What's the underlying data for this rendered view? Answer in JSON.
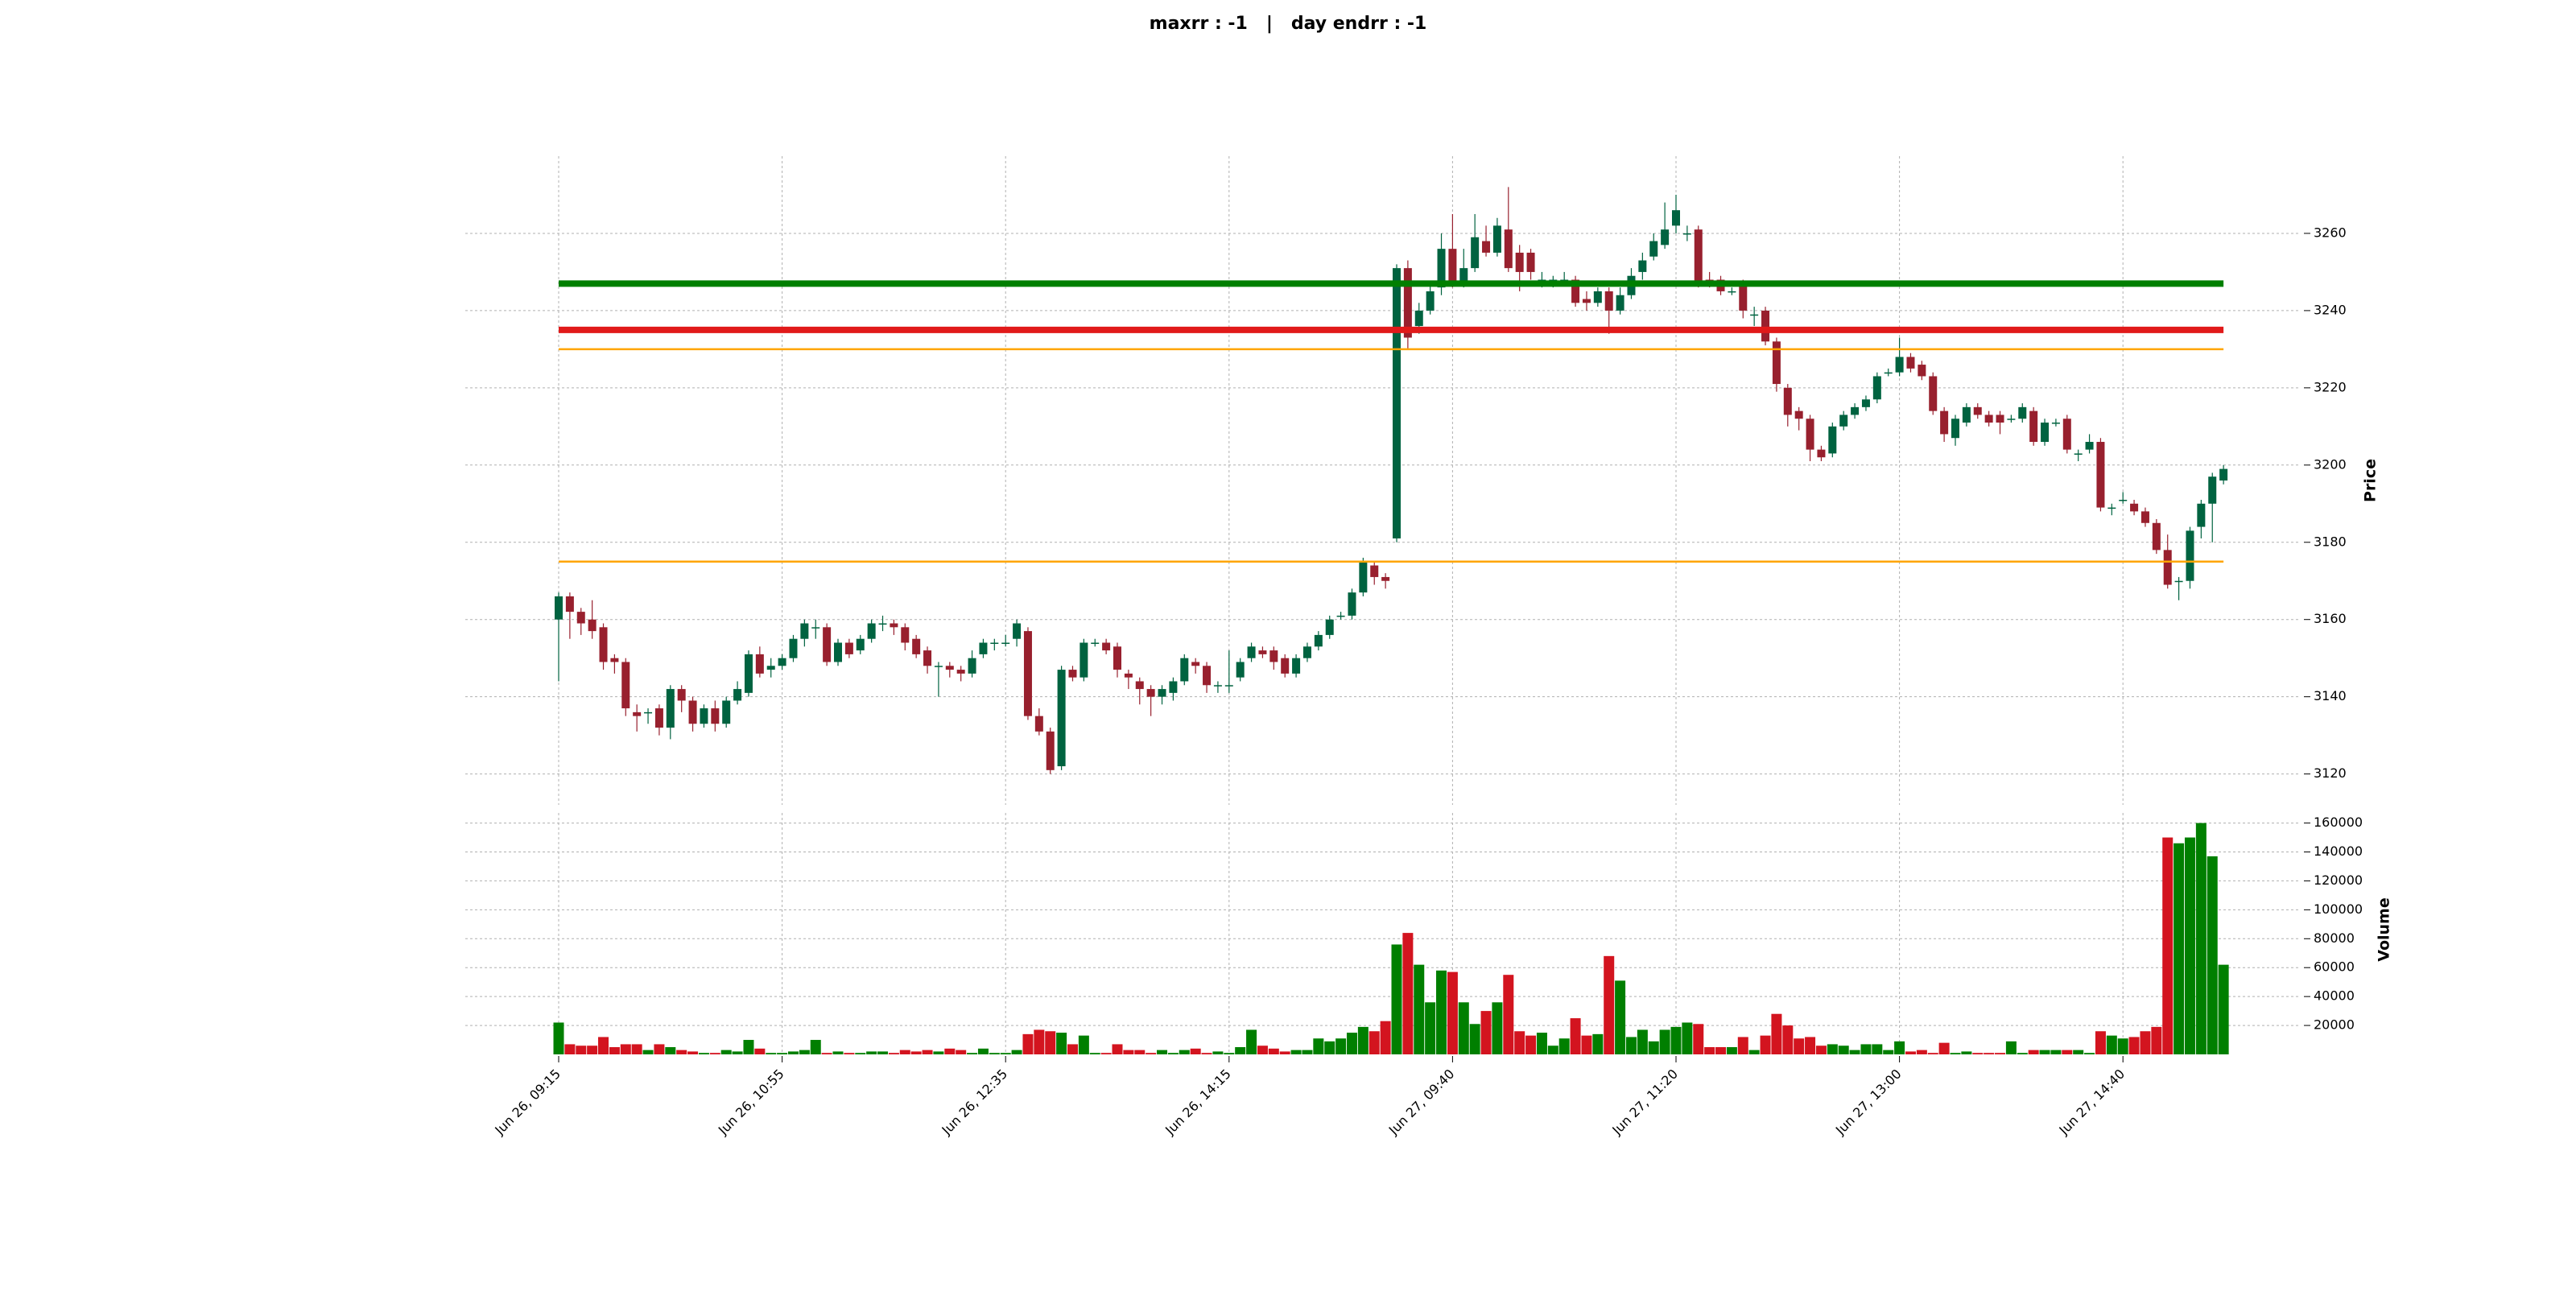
{
  "chart_data": {
    "type": "candlestick",
    "title": "maxrr : -1   |   day endrr : -1",
    "ylabel": "Price",
    "volume_ylabel": "Volume",
    "ylim": [
      3112,
      3280
    ],
    "yticks": [
      3120,
      3140,
      3160,
      3180,
      3200,
      3220,
      3240,
      3260
    ],
    "volume_ylim": [
      0,
      167000
    ],
    "volume_yticks": [
      20000,
      40000,
      60000,
      80000,
      100000,
      120000,
      140000,
      160000
    ],
    "xticks": [
      {
        "value": 0,
        "label": "Jun 26, 09:15"
      },
      {
        "value": 20,
        "label": "Jun 26, 10:55"
      },
      {
        "value": 40,
        "label": "Jun 26, 12:35"
      },
      {
        "value": 60,
        "label": "Jun 26, 14:15"
      },
      {
        "value": 80,
        "label": "Jun 27, 09:40"
      },
      {
        "value": 100,
        "label": "Jun 27, 11:20"
      },
      {
        "value": 120,
        "label": "Jun 27, 13:00"
      },
      {
        "value": 140,
        "label": "Jun 27, 14:40"
      }
    ],
    "grid": true,
    "up_color": "#006340",
    "down_color": "#98202e",
    "volume_up_color": "#007f00",
    "volume_down_color": "#d3141f",
    "open": [
      3160,
      3166,
      3162,
      3160,
      3158,
      3150,
      3149,
      3136,
      3136,
      3137,
      3132,
      3142,
      3139,
      3133,
      3137,
      3133,
      3139,
      3141,
      3151,
      3147,
      3148,
      3150,
      3155,
      3158,
      3158,
      3149,
      3154,
      3152,
      3155,
      3159,
      3159,
      3158,
      3155,
      3152,
      3148,
      3148,
      3147,
      3146,
      3151,
      3154,
      3154,
      3155,
      3157,
      3135,
      3131,
      3122,
      3147,
      3145,
      3154,
      3154,
      3153,
      3146,
      3144,
      3142,
      3140,
      3141,
      3144,
      3149,
      3148,
      3143,
      3143,
      3145,
      3150,
      3152,
      3152,
      3150,
      3146,
      3150,
      3153,
      3156,
      3161,
      3161,
      3167,
      3174,
      3171,
      3181,
      3251,
      3236,
      3240,
      3246,
      3256,
      3247,
      3251,
      3258,
      3255,
      3261,
      3255,
      3255,
      3248,
      3248,
      3248,
      3248,
      3243,
      3242,
      3245,
      3240,
      3244,
      3250,
      3254,
      3257,
      3262,
      3260,
      3261,
      3248,
      3248,
      3245,
      3247,
      3239,
      3240,
      3232,
      3220,
      3214,
      3212,
      3204,
      3203,
      3210,
      3213,
      3215,
      3217,
      3224,
      3224,
      3228,
      3226,
      3223,
      3214,
      3207,
      3211,
      3215,
      3213,
      3213,
      3212,
      3212,
      3214,
      3206,
      3211,
      3212,
      3203,
      3204,
      3206,
      3189,
      3191,
      3190,
      3188,
      3185,
      3178,
      3170,
      3170,
      3184,
      3190,
      3196
    ],
    "high": [
      3167,
      3167,
      3163,
      3165,
      3159,
      3151,
      3150,
      3138,
      3137,
      3138,
      3143,
      3143,
      3140,
      3138,
      3139,
      3140,
      3144,
      3152,
      3153,
      3150,
      3151,
      3156,
      3160,
      3160,
      3159,
      3155,
      3155,
      3156,
      3160,
      3161,
      3160,
      3159,
      3156,
      3153,
      3149,
      3149,
      3148,
      3152,
      3155,
      3155,
      3156,
      3160,
      3158,
      3137,
      3132,
      3148,
      3148,
      3155,
      3155,
      3155,
      3154,
      3147,
      3145,
      3143,
      3143,
      3145,
      3151,
      3150,
      3149,
      3144,
      3152,
      3150,
      3154,
      3153,
      3153,
      3151,
      3151,
      3154,
      3157,
      3161,
      3162,
      3168,
      3176,
      3175,
      3172,
      3252,
      3253,
      3242,
      3247,
      3260,
      3265,
      3256,
      3265,
      3262,
      3264,
      3272,
      3257,
      3256,
      3250,
      3249,
      3250,
      3249,
      3245,
      3246,
      3246,
      3246,
      3251,
      3255,
      3260,
      3268,
      3270,
      3262,
      3262,
      3250,
      3249,
      3246,
      3248,
      3241,
      3241,
      3233,
      3221,
      3215,
      3213,
      3205,
      3211,
      3214,
      3216,
      3218,
      3224,
      3225,
      3233,
      3229,
      3227,
      3224,
      3215,
      3213,
      3216,
      3216,
      3214,
      3214,
      3213,
      3216,
      3215,
      3212,
      3212,
      3213,
      3204,
      3208,
      3207,
      3190,
      3193,
      3191,
      3189,
      3186,
      3182,
      3171,
      3184,
      3191,
      3198,
      3200
    ],
    "low": [
      3144,
      3155,
      3156,
      3155,
      3147,
      3146,
      3135,
      3131,
      3133,
      3130,
      3129,
      3136,
      3131,
      3132,
      3131,
      3132,
      3138,
      3140,
      3145,
      3145,
      3147,
      3149,
      3153,
      3155,
      3148,
      3148,
      3150,
      3151,
      3154,
      3157,
      3156,
      3152,
      3150,
      3146,
      3140,
      3145,
      3144,
      3145,
      3150,
      3152,
      3153,
      3153,
      3134,
      3130,
      3120,
      3121,
      3144,
      3144,
      3153,
      3151,
      3145,
      3142,
      3138,
      3135,
      3138,
      3139,
      3143,
      3146,
      3141,
      3141,
      3141,
      3144,
      3149,
      3150,
      3147,
      3145,
      3145,
      3149,
      3152,
      3155,
      3160,
      3160,
      3166,
      3169,
      3168,
      3180,
      3230,
      3234,
      3239,
      3244,
      3246,
      3246,
      3250,
      3254,
      3254,
      3250,
      3245,
      3248,
      3246,
      3246,
      3247,
      3241,
      3240,
      3241,
      3234,
      3239,
      3243,
      3248,
      3253,
      3256,
      3260,
      3258,
      3246,
      3246,
      3244,
      3244,
      3238,
      3236,
      3231,
      3219,
      3210,
      3209,
      3201,
      3201,
      3202,
      3209,
      3212,
      3214,
      3216,
      3223,
      3223,
      3224,
      3222,
      3213,
      3206,
      3205,
      3210,
      3212,
      3210,
      3208,
      3211,
      3211,
      3205,
      3205,
      3210,
      3203,
      3201,
      3203,
      3188,
      3187,
      3190,
      3187,
      3184,
      3177,
      3168,
      3165,
      3168,
      3181,
      3180,
      3195
    ],
    "close": [
      3166,
      3162,
      3159,
      3157,
      3149,
      3149,
      3137,
      3135,
      3136,
      3132,
      3142,
      3139,
      3133,
      3137,
      3133,
      3139,
      3142,
      3151,
      3146,
      3148,
      3150,
      3155,
      3159,
      3158,
      3149,
      3154,
      3151,
      3155,
      3159,
      3159,
      3158,
      3154,
      3151,
      3148,
      3148,
      3147,
      3146,
      3150,
      3154,
      3154,
      3154,
      3159,
      3135,
      3131,
      3121,
      3147,
      3145,
      3154,
      3154,
      3152,
      3147,
      3145,
      3142,
      3140,
      3142,
      3144,
      3150,
      3148,
      3143,
      3143,
      3143,
      3149,
      3153,
      3151,
      3149,
      3146,
      3150,
      3153,
      3156,
      3160,
      3161,
      3167,
      3175,
      3171,
      3170,
      3251,
      3233,
      3240,
      3245,
      3256,
      3247,
      3251,
      3259,
      3255,
      3262,
      3251,
      3250,
      3250,
      3248,
      3248,
      3248,
      3242,
      3242,
      3245,
      3240,
      3244,
      3249,
      3253,
      3258,
      3261,
      3266,
      3260,
      3247,
      3247,
      3245,
      3245,
      3240,
      3239,
      3232,
      3221,
      3213,
      3212,
      3204,
      3202,
      3210,
      3213,
      3215,
      3217,
      3223,
      3224,
      3228,
      3225,
      3223,
      3214,
      3208,
      3212,
      3215,
      3213,
      3211,
      3211,
      3212,
      3215,
      3206,
      3211,
      3211,
      3204,
      3203,
      3206,
      3189,
      3189,
      3191,
      3188,
      3185,
      3178,
      3169,
      3170,
      3183,
      3190,
      3197,
      3199
    ],
    "volume": [
      22000,
      7000,
      6000,
      6000,
      12000,
      5000,
      7000,
      7000,
      3000,
      7000,
      5000,
      3000,
      2000,
      1000,
      1000,
      3000,
      2000,
      10000,
      4000,
      1000,
      1000,
      2000,
      3000,
      10000,
      1000,
      2000,
      1000,
      1000,
      2000,
      2000,
      1000,
      3000,
      2000,
      3000,
      2000,
      4000,
      3000,
      1000,
      4000,
      1000,
      1000,
      3000,
      14000,
      17000,
      16000,
      15000,
      7000,
      13000,
      1000,
      1000,
      7000,
      3000,
      3000,
      1000,
      3000,
      1000,
      3000,
      4000,
      1000,
      2000,
      1000,
      5000,
      17000,
      6000,
      4000,
      2000,
      3000,
      3000,
      11000,
      9000,
      11000,
      15000,
      19000,
      16000,
      23000,
      76000,
      84000,
      62000,
      36000,
      58000,
      57000,
      36000,
      21000,
      30000,
      36000,
      55000,
      16000,
      13000,
      15000,
      6000,
      11000,
      25000,
      13000,
      14000,
      68000,
      51000,
      12000,
      17000,
      9000,
      17000,
      19000,
      22000,
      21000,
      5000,
      5000,
      5000,
      12000,
      3000,
      13000,
      28000,
      20000,
      11000,
      12000,
      6000,
      7000,
      6000,
      3000,
      7000,
      7000,
      3000,
      9000,
      2000,
      3000,
      1000,
      8000,
      1000,
      2000,
      1000,
      1000,
      1000,
      9000,
      1000,
      3000,
      3000,
      3000,
      3000,
      3000,
      1000,
      16000,
      13000,
      11000,
      12000,
      16000,
      19000,
      150000,
      146000,
      150000,
      160000,
      137000,
      62000
    ],
    "hlines": [
      {
        "value": 3247,
        "color": "#007f00"
      },
      {
        "value": 3235,
        "color": "#e11a1a"
      },
      {
        "value": 3230,
        "color": "#ffa500"
      },
      {
        "value": 3175,
        "color": "#ffa500"
      }
    ]
  }
}
